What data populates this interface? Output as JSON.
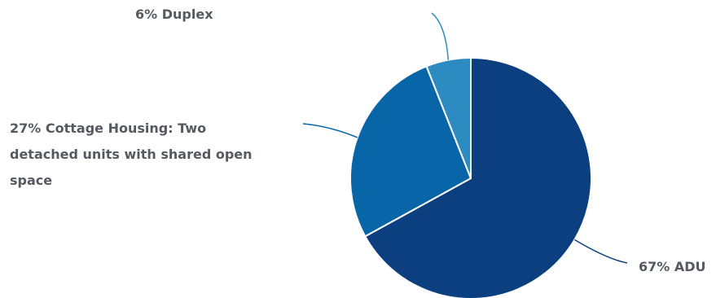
{
  "chart_data": {
    "type": "pie",
    "title": "",
    "slices": [
      {
        "label": "ADU",
        "value": 67,
        "color": "#0b3f80"
      },
      {
        "label": "Cottage Housing: Two detached units with shared open space",
        "value": 27,
        "color": "#0765a8"
      },
      {
        "label": "Duplex",
        "value": 6,
        "color": "#2c8cc1"
      }
    ],
    "data_labels": [
      "67% ADU",
      "27% Cottage Housing: Two detached units with shared open space",
      "6% Duplex"
    ],
    "legend": "none"
  }
}
